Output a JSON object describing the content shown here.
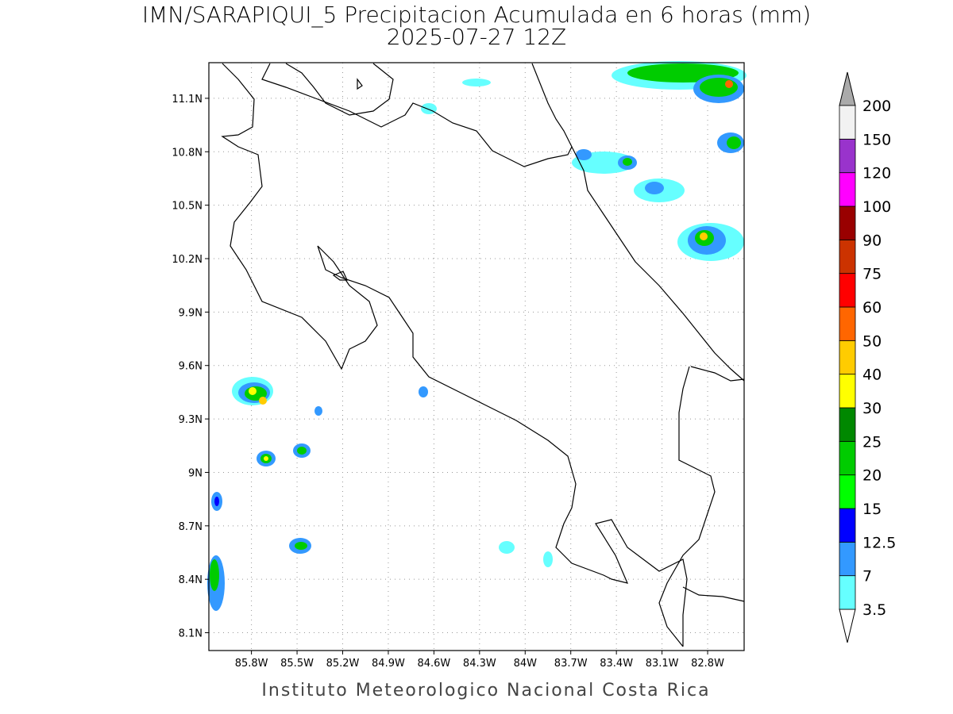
{
  "map": {
    "title": "IMN/SARAPIQUI_5 Precipitacion Acumulada en 6 horas (mm)",
    "subtitle": "2025-07-27 12Z",
    "footer": "Instituto Meteorologico Nacional Costa Rica",
    "xlim": [
      -86.08,
      -82.56
    ],
    "ylim": [
      8.0,
      11.3
    ],
    "grid": true,
    "xticks": [
      {
        "value": -85.8,
        "label": "85.8W"
      },
      {
        "value": -85.5,
        "label": "85.5W"
      },
      {
        "value": -85.2,
        "label": "85.2W"
      },
      {
        "value": -84.9,
        "label": "84.9W"
      },
      {
        "value": -84.6,
        "label": "84.6W"
      },
      {
        "value": -84.3,
        "label": "84.3W"
      },
      {
        "value": -84.0,
        "label": "84W"
      },
      {
        "value": -83.7,
        "label": "83.7W"
      },
      {
        "value": -83.4,
        "label": "83.4W"
      },
      {
        "value": -83.1,
        "label": "83.1W"
      },
      {
        "value": -82.8,
        "label": "82.8W"
      }
    ],
    "yticks": [
      {
        "value": 8.1,
        "label": "8.1N"
      },
      {
        "value": 8.4,
        "label": "8.4N"
      },
      {
        "value": 8.7,
        "label": "8.7N"
      },
      {
        "value": 9.0,
        "label": "9N"
      },
      {
        "value": 9.3,
        "label": "9.3N"
      },
      {
        "value": 9.6,
        "label": "9.6N"
      },
      {
        "value": 9.9,
        "label": "9.9N"
      },
      {
        "value": 10.2,
        "label": "10.2N"
      },
      {
        "value": 10.5,
        "label": "10.5N"
      },
      {
        "value": 10.8,
        "label": "10.8N"
      },
      {
        "value": 11.1,
        "label": "11.1N"
      }
    ],
    "colorbar": {
      "levels": [
        3.5,
        7,
        12.5,
        15,
        20,
        25,
        30,
        40,
        50,
        60,
        75,
        90,
        100,
        120,
        150,
        200
      ],
      "colors": [
        "#66ffff",
        "#3399ff",
        "#0000ff",
        "#00ff00",
        "#00cc00",
        "#008800",
        "#ffff00",
        "#ffcc00",
        "#ff6600",
        "#ff0000",
        "#cc3300",
        "#990000",
        "#ff00ff",
        "#9933cc",
        "#f2f2f2"
      ],
      "below_color": "#ffffff",
      "above_color": "#aaaaaa"
    }
  }
}
